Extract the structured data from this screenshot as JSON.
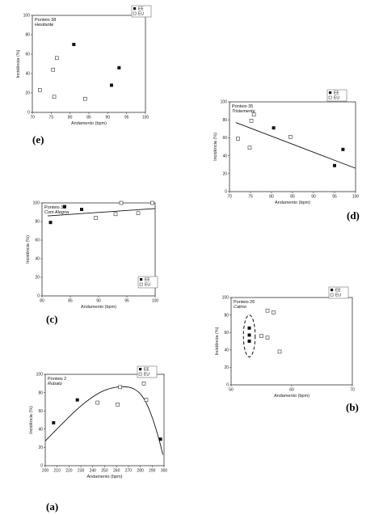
{
  "legend_labels": [
    "EE",
    "EU"
  ],
  "chart_data": [
    {
      "id": "e",
      "type": "scatter",
      "panel_label": "(e)",
      "title": "Ponteio 38",
      "subtitle": "Hesitante",
      "xlabel": "Andamento (bpm)",
      "ylabel": "Incidência (%)",
      "xlim": [
        70,
        100
      ],
      "ylim": [
        0,
        100
      ],
      "xticks": [
        70,
        75,
        80,
        85,
        90,
        95,
        100
      ],
      "yticks": [
        0,
        20,
        40,
        60,
        80,
        100
      ],
      "tick_labels_x": [
        "70",
        "75",
        "80",
        "85",
        "90",
        "95",
        "100"
      ],
      "tick_labels_y": [
        "0",
        "20",
        "40",
        "60",
        "80",
        "100"
      ],
      "series": [
        {
          "name": "EE",
          "marker": "filled",
          "points": [
            [
              81,
              70
            ],
            [
              91,
              28
            ],
            [
              93,
              46
            ]
          ]
        },
        {
          "name": "EU",
          "marker": "open",
          "points": [
            [
              72,
              23
            ],
            [
              75.5,
              44
            ],
            [
              75.8,
              16
            ],
            [
              76.5,
              56
            ],
            [
              84,
              14
            ]
          ]
        }
      ]
    },
    {
      "id": "d",
      "type": "scatter",
      "panel_label": "(d)",
      "title": "Ponteio 35",
      "subtitle": "Tristemente",
      "xlabel": "Andamento (bpm)",
      "ylabel": "Incidência (%)",
      "xlim": [
        70,
        100
      ],
      "ylim": [
        0,
        100
      ],
      "xticks": [
        70,
        75,
        80,
        85,
        90,
        95,
        100
      ],
      "yticks": [
        0,
        20,
        40,
        60,
        80,
        100
      ],
      "tick_labels_x": [
        "70",
        "75",
        "80",
        "85",
        "90",
        "95",
        "100"
      ],
      "tick_labels_y": [
        "0",
        "20",
        "40",
        "60",
        "80",
        "100"
      ],
      "series": [
        {
          "name": "EE",
          "marker": "filled",
          "points": [
            [
              80.5,
              71
            ],
            [
              95,
              29
            ],
            [
              97,
              47
            ]
          ]
        },
        {
          "name": "EU",
          "marker": "open",
          "points": [
            [
              72,
              59
            ],
            [
              74.8,
              49
            ],
            [
              75.2,
              79
            ],
            [
              75.8,
              86
            ],
            [
              84.5,
              61
            ]
          ]
        }
      ],
      "trend": [
        [
          71.5,
          77
        ],
        [
          100,
          26
        ]
      ]
    },
    {
      "id": "c",
      "type": "scatter",
      "panel_label": "(c)",
      "title": "Ponteio 32",
      "subtitle": "Com Alegria",
      "xlabel": "Andamento (bpm)",
      "ylabel": "Incidência (%)",
      "xlim": [
        80,
        100
      ],
      "ylim": [
        0,
        100
      ],
      "xticks": [
        80,
        85,
        90,
        95,
        100
      ],
      "yticks": [
        0,
        20,
        40,
        60,
        80,
        100
      ],
      "tick_labels_x": [
        "80",
        "85",
        "90",
        "95",
        "100"
      ],
      "tick_labels_y": [
        "0",
        "20",
        "40",
        "60",
        "80",
        "100"
      ],
      "series": [
        {
          "name": "EE",
          "marker": "filled",
          "points": [
            [
              81.5,
              79
            ],
            [
              84,
              96
            ],
            [
              87,
              93
            ]
          ]
        },
        {
          "name": "EU",
          "marker": "open",
          "points": [
            [
              89.5,
              84
            ],
            [
              93,
              88
            ],
            [
              94,
              100
            ],
            [
              97,
              89
            ],
            [
              99.5,
              100
            ]
          ]
        }
      ],
      "trend": [
        [
          81,
          86
        ],
        [
          100,
          94
        ]
      ]
    },
    {
      "id": "b",
      "type": "scatter",
      "panel_label": "(b)",
      "title": "Ponteio 26",
      "subtitle": "Calmo",
      "xlabel": "Andamento (bpm)",
      "ylabel": "Incidência (%)",
      "xlim": [
        50,
        70
      ],
      "ylim": [
        0,
        100
      ],
      "xticks": [
        50,
        60,
        70
      ],
      "yticks": [
        0,
        20,
        40,
        60,
        80,
        100
      ],
      "tick_labels_x": [
        "50",
        "60",
        "70"
      ],
      "tick_labels_y": [
        "0",
        "20",
        "40",
        "60",
        "80",
        "100"
      ],
      "series": [
        {
          "name": "EE",
          "marker": "filled",
          "points": [
            [
              53,
              65
            ],
            [
              53,
              57
            ],
            [
              53,
              50
            ]
          ]
        },
        {
          "name": "EU",
          "marker": "open",
          "points": [
            [
              55,
              56
            ],
            [
              56,
              54
            ],
            [
              56,
              85
            ],
            [
              57,
              83
            ],
            [
              58,
              38
            ]
          ]
        }
      ],
      "ellipse": {
        "cx": 53,
        "cy": 56,
        "rx": 0.7,
        "ry": 24
      }
    },
    {
      "id": "a",
      "type": "scatter",
      "panel_label": "(a)",
      "title": "Ponteio 2",
      "subtitle": "Rubato",
      "xlabel": "Andamento (bpm)",
      "ylabel": "Incidência (%)",
      "xlim": [
        200,
        300
      ],
      "ylim": [
        0,
        100
      ],
      "xticks": [
        200,
        210,
        220,
        230,
        240,
        250,
        260,
        270,
        280,
        290,
        300
      ],
      "yticks": [
        0,
        20,
        40,
        60,
        80,
        100
      ],
      "tick_labels_x": [
        "200",
        "210",
        "220",
        "230",
        "240",
        "250",
        "260",
        "270",
        "280",
        "290",
        "300"
      ],
      "tick_labels_y": [
        "0",
        "20",
        "40",
        "60",
        "80",
        "100"
      ],
      "series": [
        {
          "name": "EE",
          "marker": "filled",
          "points": [
            [
              207,
              47
            ],
            [
              227,
              72
            ],
            [
              297,
              29
            ]
          ]
        },
        {
          "name": "EU",
          "marker": "open",
          "points": [
            [
              244,
              69
            ],
            [
              261,
              67
            ],
            [
              263,
              86
            ],
            [
              283,
              90
            ],
            [
              285,
              72
            ]
          ]
        }
      ],
      "curve": [
        [
          200,
          27
        ],
        [
          215,
          47
        ],
        [
          230,
          66
        ],
        [
          245,
          80
        ],
        [
          255,
          85
        ],
        [
          265,
          87
        ],
        [
          275,
          85
        ],
        [
          283,
          75
        ],
        [
          290,
          54
        ],
        [
          296,
          28
        ],
        [
          299,
          12
        ]
      ]
    }
  ]
}
